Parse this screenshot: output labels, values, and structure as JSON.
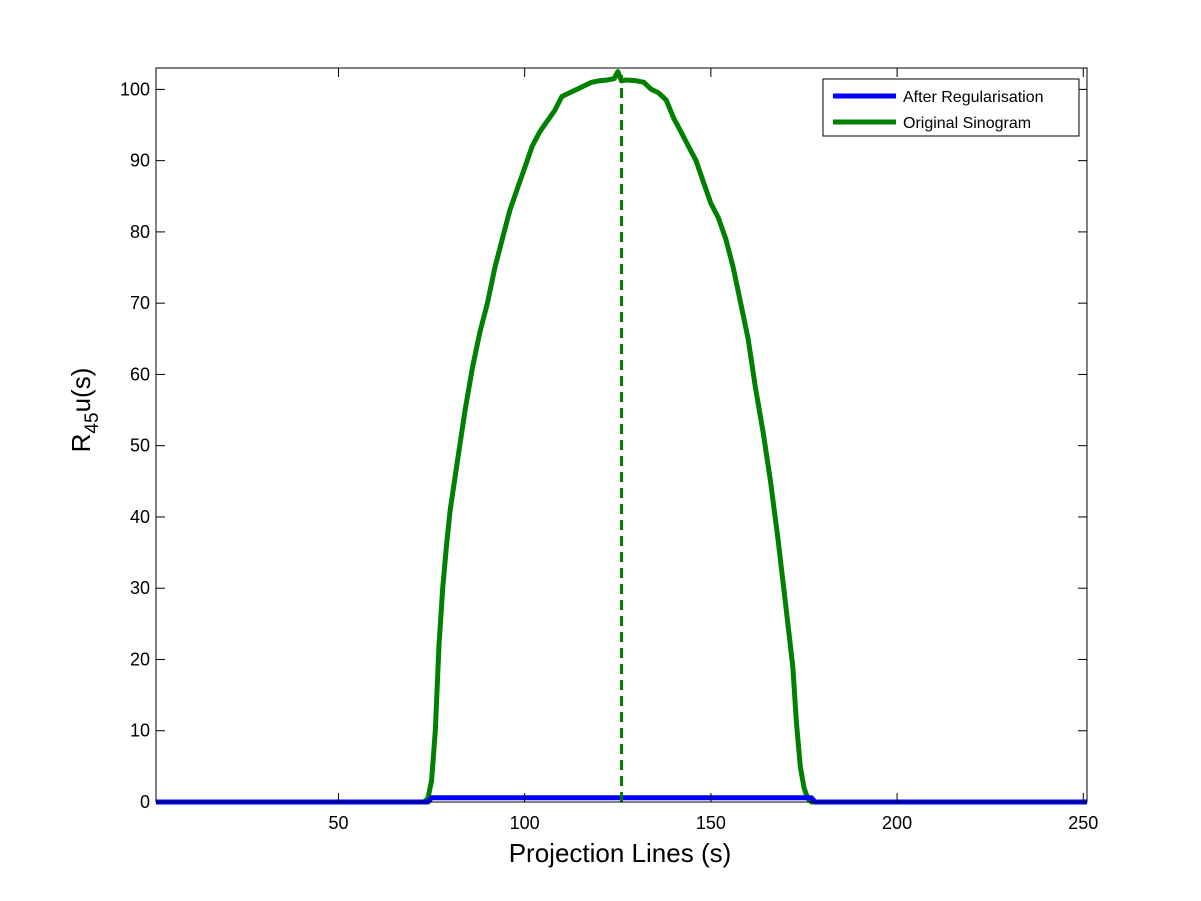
{
  "chart_data": {
    "type": "line",
    "xlabel": "Projection Lines (s)",
    "ylabel": {
      "main": "R",
      "sub": "45",
      "rest": "u(s)"
    },
    "xlim": [
      1,
      251
    ],
    "ylim": [
      0,
      103
    ],
    "xticks": [
      50,
      100,
      150,
      200,
      250
    ],
    "yticks": [
      0,
      10,
      20,
      30,
      40,
      50,
      60,
      70,
      80,
      90,
      100
    ],
    "grid": false,
    "legend_position": "top-right",
    "colors": {
      "after": "#0000ff",
      "original": "#008000"
    },
    "series": [
      {
        "name": "After Regularisation",
        "x": [
          1,
          74,
          75,
          177,
          178,
          251
        ],
        "y": [
          0,
          0,
          0.6,
          0.6,
          0,
          0
        ]
      },
      {
        "name": "Original Sinogram",
        "x": [
          1,
          73,
          74,
          75,
          76,
          77,
          78,
          79,
          80,
          82,
          84,
          86,
          88,
          90,
          92,
          94,
          96,
          98,
          100,
          102,
          104,
          106,
          108,
          110,
          112,
          114,
          116,
          118,
          120,
          122,
          124,
          125,
          126,
          127,
          128,
          130,
          132,
          134,
          136,
          138,
          140,
          142,
          144,
          146,
          148,
          150,
          152,
          154,
          156,
          158,
          160,
          162,
          164,
          166,
          168,
          170,
          172,
          173,
          174,
          175,
          176,
          177,
          178,
          251
        ],
        "y": [
          0,
          0,
          0.5,
          3,
          10,
          22,
          30,
          36,
          41,
          48,
          55,
          61,
          66,
          70,
          75,
          79,
          83,
          86,
          89,
          92,
          94,
          95.5,
          97,
          99,
          99.5,
          100,
          100.5,
          101,
          101.2,
          101.3,
          101.5,
          102.5,
          101.2,
          101.3,
          101.3,
          101.2,
          101,
          100,
          99.5,
          98.5,
          96,
          94,
          92,
          90,
          87,
          84,
          82,
          79,
          75,
          70,
          65,
          58,
          52,
          45,
          37,
          28,
          19,
          11,
          5,
          2,
          0.5,
          0,
          0,
          0
        ]
      }
    ],
    "annotations": [
      {
        "type": "vertical-dashed-line",
        "x": 126,
        "y_from": 0,
        "y_to": 102,
        "series": "Original Sinogram"
      }
    ]
  }
}
